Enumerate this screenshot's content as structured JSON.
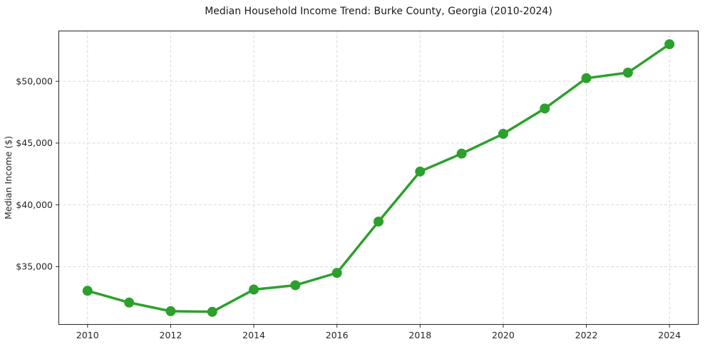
{
  "chart_data": {
    "type": "line",
    "title": "Median Household Income Trend: Burke County, Georgia (2010-2024)",
    "xlabel": "",
    "ylabel": "Median Income ($)",
    "series_name": "Median Household Income",
    "x": [
      2010,
      2011,
      2012,
      2013,
      2014,
      2015,
      2016,
      2017,
      2018,
      2019,
      2020,
      2021,
      2022,
      2023,
      2024
    ],
    "values": [
      33050,
      32100,
      31400,
      31350,
      33150,
      33500,
      34500,
      38650,
      42700,
      44150,
      45750,
      47800,
      50250,
      50700,
      53000
    ],
    "xlim": [
      2009.3,
      2024.7
    ],
    "ylim": [
      30300,
      54100
    ],
    "xticks": [
      2010,
      2012,
      2014,
      2016,
      2018,
      2020,
      2022,
      2024
    ],
    "xtick_labels": [
      "2010",
      "2012",
      "2014",
      "2016",
      "2018",
      "2020",
      "2022",
      "2024"
    ],
    "yticks": [
      35000,
      40000,
      45000,
      50000
    ],
    "ytick_labels": [
      "$35,000",
      "$40,000",
      "$45,000",
      "$50,000"
    ],
    "grid": true,
    "grid_style": "dashed",
    "legend": "none",
    "line_color": "#2ca02c",
    "marker": "circle",
    "marker_size": 7,
    "line_width": 3.5,
    "grid_color": "#d9d9d9",
    "axis_color": "#262626",
    "tick_label_color": "#262626",
    "background_color": "#ffffff"
  }
}
